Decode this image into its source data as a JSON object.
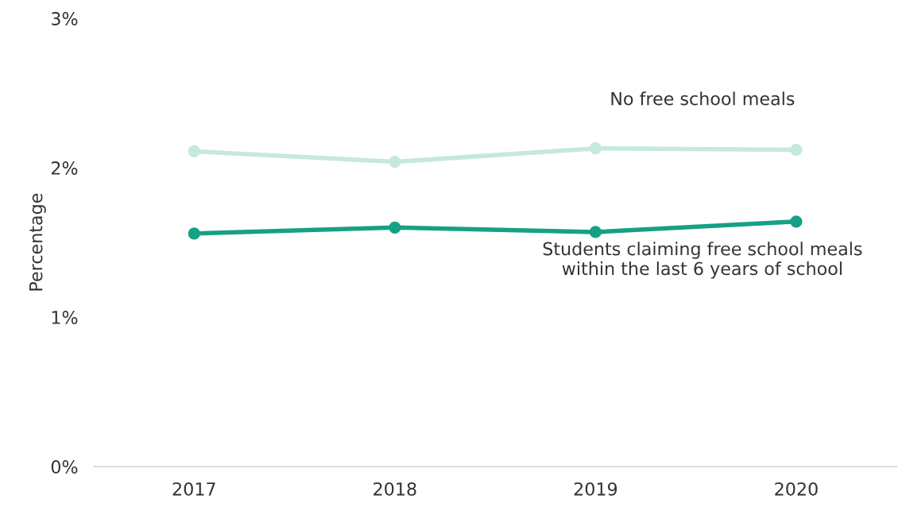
{
  "chart_data": {
    "type": "line",
    "ylabel": "Percentage",
    "categories": [
      "2017",
      "2018",
      "2019",
      "2020"
    ],
    "series": [
      {
        "name": "No free school meals",
        "color": "#c5e8e0",
        "values": [
          2.11,
          2.04,
          2.13,
          2.12
        ]
      },
      {
        "name": "Students claiming free school meals\nwithin the last 6 years of school",
        "color": "#16a085",
        "values": [
          1.56,
          1.6,
          1.57,
          1.64
        ]
      }
    ],
    "ylim": [
      0,
      3
    ],
    "yticks": [
      {
        "value": 0,
        "label": "0%"
      },
      {
        "value": 1,
        "label": "1%"
      },
      {
        "value": 2,
        "label": "2%"
      },
      {
        "value": 3,
        "label": "3%"
      }
    ],
    "grid": false,
    "legend": false,
    "marker": "circle",
    "line_style": "solid"
  }
}
